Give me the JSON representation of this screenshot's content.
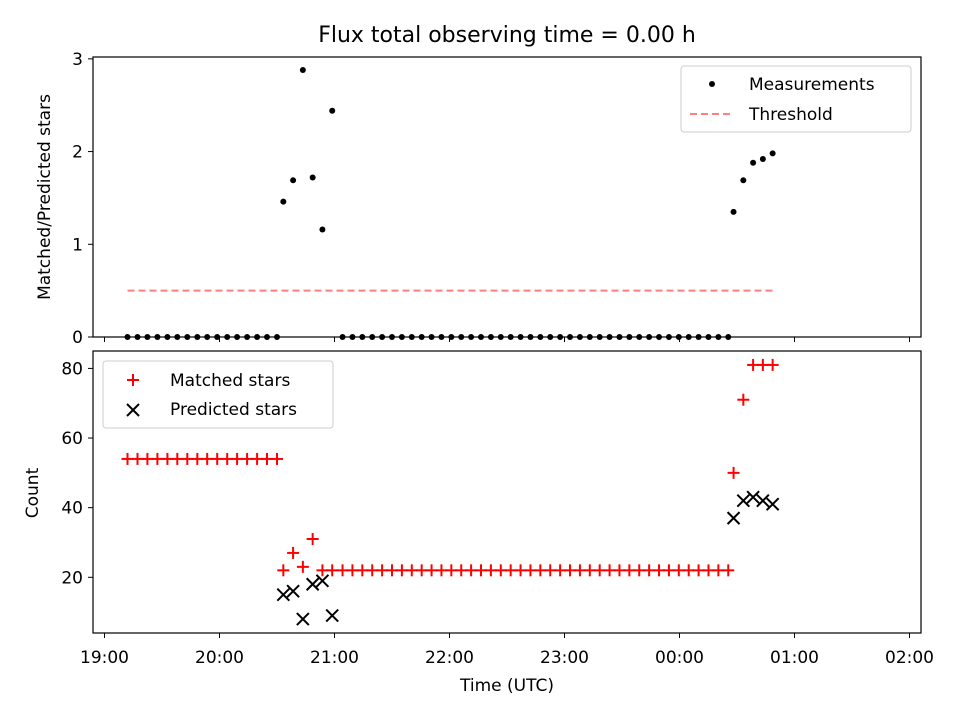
{
  "title": "Flux total observing time = 0.00 h",
  "xlabel": "Time (UTC)",
  "xticks": [
    "19:00",
    "20:00",
    "21:00",
    "22:00",
    "23:00",
    "00:00",
    "01:00",
    "02:00"
  ],
  "colors": {
    "measurement": "#000000",
    "threshold": "#ff7f7f",
    "matched": "#ff0000",
    "predicted": "#000000"
  },
  "chart_data": [
    {
      "type": "scatter",
      "ylabel": "Matched/Predicted stars",
      "ylim": [
        0,
        3.02
      ],
      "yticks": [
        0,
        1,
        2,
        3
      ],
      "xlim_hours": [
        -0.1,
        7.1
      ],
      "legend": "top-right",
      "series": [
        {
          "name": "Measurements",
          "x_hours": [
            0.2,
            0.287,
            0.373,
            0.46,
            0.547,
            0.633,
            0.72,
            0.807,
            0.893,
            0.98,
            1.067,
            1.153,
            1.24,
            1.327,
            1.413,
            1.5,
            1.555,
            1.64,
            1.725,
            1.81,
            1.895,
            1.98,
            2.07,
            2.156,
            2.242,
            2.328,
            2.414,
            2.5,
            2.586,
            2.672,
            2.758,
            2.844,
            2.93,
            3.016,
            3.102,
            3.188,
            3.274,
            3.36,
            3.446,
            3.532,
            3.618,
            3.704,
            3.79,
            3.876,
            3.962,
            4.048,
            4.134,
            4.22,
            4.306,
            4.392,
            4.478,
            4.564,
            4.65,
            4.736,
            4.822,
            4.908,
            4.994,
            5.08,
            5.166,
            5.252,
            5.338,
            5.424,
            5.47,
            5.555,
            5.64,
            5.725,
            5.81
          ],
          "y": [
            0,
            0,
            0,
            0,
            0,
            0,
            0,
            0,
            0,
            0,
            0,
            0,
            0,
            0,
            0,
            0,
            1.46,
            1.69,
            2.88,
            1.72,
            1.16,
            2.44,
            0,
            0,
            0,
            0,
            0,
            0,
            0,
            0,
            0,
            0,
            0,
            0,
            0,
            0,
            0,
            0,
            0,
            0,
            0,
            0,
            0,
            0,
            0,
            0,
            0,
            0,
            0,
            0,
            0,
            0,
            0,
            0,
            0,
            0,
            0,
            0,
            0,
            0,
            0,
            0,
            1.35,
            1.69,
            1.88,
            1.92,
            1.98
          ]
        },
        {
          "name": "Threshold",
          "type": "line",
          "x_hours": [
            0.2,
            5.81
          ],
          "y": [
            0.5,
            0.5
          ]
        }
      ]
    },
    {
      "type": "scatter",
      "ylabel": "Count",
      "ylim": [
        4,
        85
      ],
      "yticks": [
        20,
        40,
        60,
        80
      ],
      "xlim_hours": [
        -0.1,
        7.1
      ],
      "legend": "top-left",
      "series": [
        {
          "name": "Matched stars",
          "x_hours": [
            0.2,
            0.287,
            0.373,
            0.46,
            0.547,
            0.633,
            0.72,
            0.807,
            0.893,
            0.98,
            1.067,
            1.153,
            1.24,
            1.327,
            1.413,
            1.5,
            1.555,
            1.64,
            1.725,
            1.81,
            1.895,
            1.98,
            2.07,
            2.156,
            2.242,
            2.328,
            2.414,
            2.5,
            2.586,
            2.672,
            2.758,
            2.844,
            2.93,
            3.016,
            3.102,
            3.188,
            3.274,
            3.36,
            3.446,
            3.532,
            3.618,
            3.704,
            3.79,
            3.876,
            3.962,
            4.048,
            4.134,
            4.22,
            4.306,
            4.392,
            4.478,
            4.564,
            4.65,
            4.736,
            4.822,
            4.908,
            4.994,
            5.08,
            5.166,
            5.252,
            5.338,
            5.424,
            5.47,
            5.555,
            5.64,
            5.725,
            5.81
          ],
          "y": [
            54,
            54,
            54,
            54,
            54,
            54,
            54,
            54,
            54,
            54,
            54,
            54,
            54,
            54,
            54,
            54,
            22,
            27,
            23,
            31,
            22,
            22,
            22,
            22,
            22,
            22,
            22,
            22,
            22,
            22,
            22,
            22,
            22,
            22,
            22,
            22,
            22,
            22,
            22,
            22,
            22,
            22,
            22,
            22,
            22,
            22,
            22,
            22,
            22,
            22,
            22,
            22,
            22,
            22,
            22,
            22,
            22,
            22,
            22,
            22,
            22,
            22,
            50,
            71,
            81,
            81,
            81
          ]
        },
        {
          "name": "Predicted stars",
          "x_hours": [
            1.555,
            1.64,
            1.725,
            1.81,
            1.895,
            1.98,
            5.47,
            5.555,
            5.64,
            5.725,
            5.81
          ],
          "y": [
            15,
            16,
            8,
            18,
            19,
            9,
            37,
            42,
            43,
            42,
            41
          ]
        }
      ]
    }
  ]
}
